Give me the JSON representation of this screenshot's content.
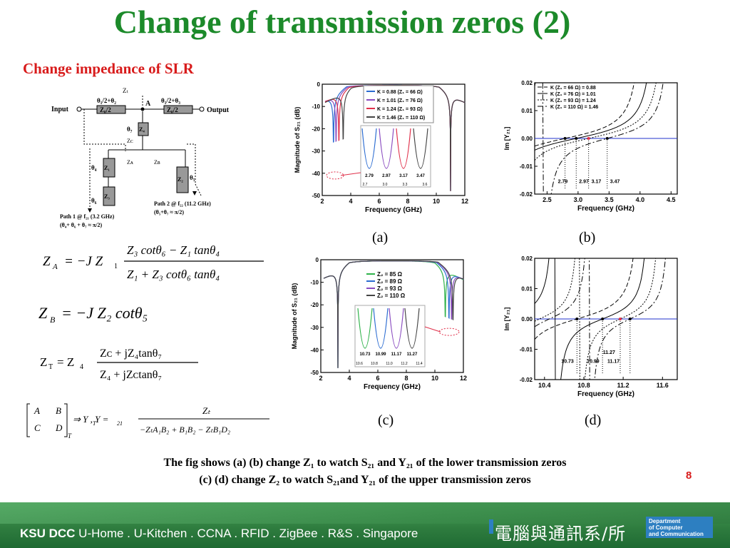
{
  "slide": {
    "title": "Change of transmission zeros (2)",
    "subtitle": "Change impedance of  SLR",
    "caption_a": "(a)",
    "caption_b": "(b)",
    "caption_c": "(c)",
    "caption_d": "(d)",
    "bottom_line1": "The fig shows (a) (b) change Z₁ to watch S₂₁ and Y₂₁ of the lower transmission zeros",
    "bottom_line2": "(c) (d) change Z₂ to watch S₂₁and Y₂₁ of the upper transmission zeros",
    "page_number": "8"
  },
  "circuit": {
    "zt": "Zₜ",
    "a": "A",
    "input": "Input",
    "output": "Output",
    "theta1_top_left": "θ₁/2+θ₂",
    "theta1_top_right": "θ₁/2+θ₃",
    "z0_left": "Z₀/2",
    "z0_right": "Z₀/2",
    "theta7": "θ₇",
    "z4": "Z₄",
    "zc": "Zᴄ",
    "za": "Zᴀ",
    "zb": "Zʙ",
    "theta4": "θ₄",
    "z1": "Z₁",
    "z2": "Z₂",
    "theta5": "θ₅",
    "theta6": "θ₆",
    "z3": "Z₃",
    "path2_line1": "Path 2 @ f₂₂ (11.2 GHz)",
    "path2_line2": "(θ₅+θ₇ ≈ π/2)",
    "path1_line1": "Path 1 @ f₂₁ (3.2 GHz)",
    "path1_line2": "(θ₄+ θ₆ + θ₇ ≈ π/2)"
  },
  "equations": {
    "za_lhs": "Z",
    "za_sub": "A",
    "za_mid": "= −J Z",
    "za_num": "Z₃ cotθ₆ − Z₁ tanθ₄",
    "za_den": "Z₁ + Z₃ cotθ₆ tanθ₄",
    "zb": "= −J Z₂ cotθ₅",
    "zt_num": "Zᴄ + jZ₄tanθ₇",
    "zt_den": "Z₄ + jZᴄtanθ₇",
    "abcd_num": "Zₜ",
    "abcd_den": "−ZₜA₁B₂ + B₁B₂ − ZₜB₁D₂"
  },
  "chart_data": [
    {
      "id": "a",
      "type": "line",
      "xlabel": "Frequency (GHz)",
      "ylabel": "Magnitude of S₂₁ (dB)",
      "xlim": [
        2,
        12
      ],
      "ylim": [
        -50,
        0
      ],
      "xticks": [
        2,
        4,
        6,
        8,
        10,
        12
      ],
      "yticks": [
        0,
        -10,
        -20,
        -30,
        -40,
        -50
      ],
      "legend": "top-right",
      "series": [
        {
          "name": "K = 0.88 (Z₁ = 66 Ω)",
          "color": "#2a6bd1",
          "zero_ghz": 2.79
        },
        {
          "name": "K = 1.01 (Z₁ = 76 Ω)",
          "color": "#8a4cc0",
          "zero_ghz": 2.97
        },
        {
          "name": "K = 1.24 (Z₁ = 93 Ω)",
          "color": "#e0304a",
          "zero_ghz": 3.17
        },
        {
          "name": "K = 1.46 (Z₁ = 110 Ω)",
          "color": "#444444",
          "zero_ghz": 3.47
        }
      ],
      "inset_labels": [
        "2.79",
        "2.97",
        "3.17",
        "3.47"
      ],
      "inset_ticks": [
        "2.7",
        "3.0",
        "3.3",
        "3.6"
      ],
      "upper_zero_ghz": 11.0
    },
    {
      "id": "b",
      "type": "line",
      "xlabel": "Frequency (GHz)",
      "ylabel": "Im [Y₂₁]",
      "xlim": [
        2.3,
        4.6
      ],
      "ylim": [
        -0.02,
        0.02
      ],
      "xticks": [
        2.5,
        3.0,
        3.5,
        4.0,
        4.5
      ],
      "yticks": [
        0.02,
        0.01,
        0.0,
        -0.01,
        -0.02
      ],
      "xtick_labels": [
        "2.5",
        "3.0",
        "3.5",
        "4.0",
        "4.5"
      ],
      "ytick_labels": [
        "0.02",
        "0.01",
        "0.00",
        "-0.01",
        "-0.02"
      ],
      "legend": "top-left",
      "series": [
        {
          "name": "K (Z₁ = 66 Ω) = 0.88",
          "dash": "6,3",
          "zero_ghz": 2.79
        },
        {
          "name": "K (Z₁ = 76 Ω) = 1.01",
          "dash": "",
          "zero_ghz": 2.97
        },
        {
          "name": "K (Z₁ = 93 Ω) = 1.24",
          "dash": "2,2",
          "zero_ghz": 3.17
        },
        {
          "name": "K (Z₁ = 110 Ω) = 1.46",
          "dash": "8,3,2,3",
          "zero_ghz": 3.47
        }
      ],
      "annotations": [
        "2.79",
        "2.97",
        "3.17",
        "3.47"
      ]
    },
    {
      "id": "c",
      "type": "line",
      "xlabel": "Frequency (GHz)",
      "ylabel": "Magnitude of S₂₁ (dB)",
      "xlim": [
        2,
        12
      ],
      "ylim": [
        -50,
        0
      ],
      "xticks": [
        2,
        4,
        6,
        8,
        10,
        12
      ],
      "yticks": [
        0,
        -10,
        -20,
        -30,
        -40,
        -50
      ],
      "legend": "top-center",
      "series": [
        {
          "name": "Z₂ = 85 Ω",
          "color": "#2fb24a",
          "zero_ghz": 10.73
        },
        {
          "name": "Z₂ = 89 Ω",
          "color": "#2a6bd1",
          "zero_ghz": 10.99
        },
        {
          "name": "Z₂ = 93 Ω",
          "color": "#8a4cc0",
          "zero_ghz": 11.17
        },
        {
          "name": "Z₂ = 110 Ω",
          "color": "#444444",
          "zero_ghz": 11.27
        }
      ],
      "inset_labels": [
        "10.73",
        "10.99",
        "11.17",
        "11.27"
      ],
      "inset_ticks": [
        "10.6",
        "10.8",
        "11.0",
        "11.2",
        "11.4"
      ],
      "lower_zero_ghz": 3.2
    },
    {
      "id": "d",
      "type": "line",
      "xlabel": "Frequency (GHz)",
      "ylabel": "Im [Y₂₁]",
      "xlim": [
        10.3,
        11.75
      ],
      "ylim": [
        -0.02,
        0.02
      ],
      "xticks": [
        10.4,
        10.8,
        11.2,
        11.6
      ],
      "yticks": [
        0.02,
        0.01,
        0.0,
        -0.01,
        -0.02
      ],
      "xtick_labels": [
        "10.4",
        "10.8",
        "11.2",
        "11.6"
      ],
      "ytick_labels": [
        "0.02",
        "0.01",
        "0.00",
        "-0.01",
        "-0.02"
      ],
      "series": [
        {
          "dash": "6,3",
          "zero_ghz": 10.73
        },
        {
          "dash": "",
          "zero_ghz": 10.99
        },
        {
          "dash": "2,2",
          "zero_ghz": 11.17
        },
        {
          "dash": "8,3,2,3",
          "zero_ghz": 11.27
        }
      ],
      "annotations": [
        "10.73",
        "10.99",
        "11.17",
        "11.27"
      ]
    }
  ],
  "footer": {
    "brand_bold": "KSU DCC",
    "brand_rest": " U-Home . U-Kitchen . CCNA . RFID . ZigBee . R&S . Singapore",
    "chinese": "電腦與通訊系/所",
    "dept_line1": "Department",
    "dept_line2": "of Computer",
    "dept_line3": "and Communication"
  }
}
